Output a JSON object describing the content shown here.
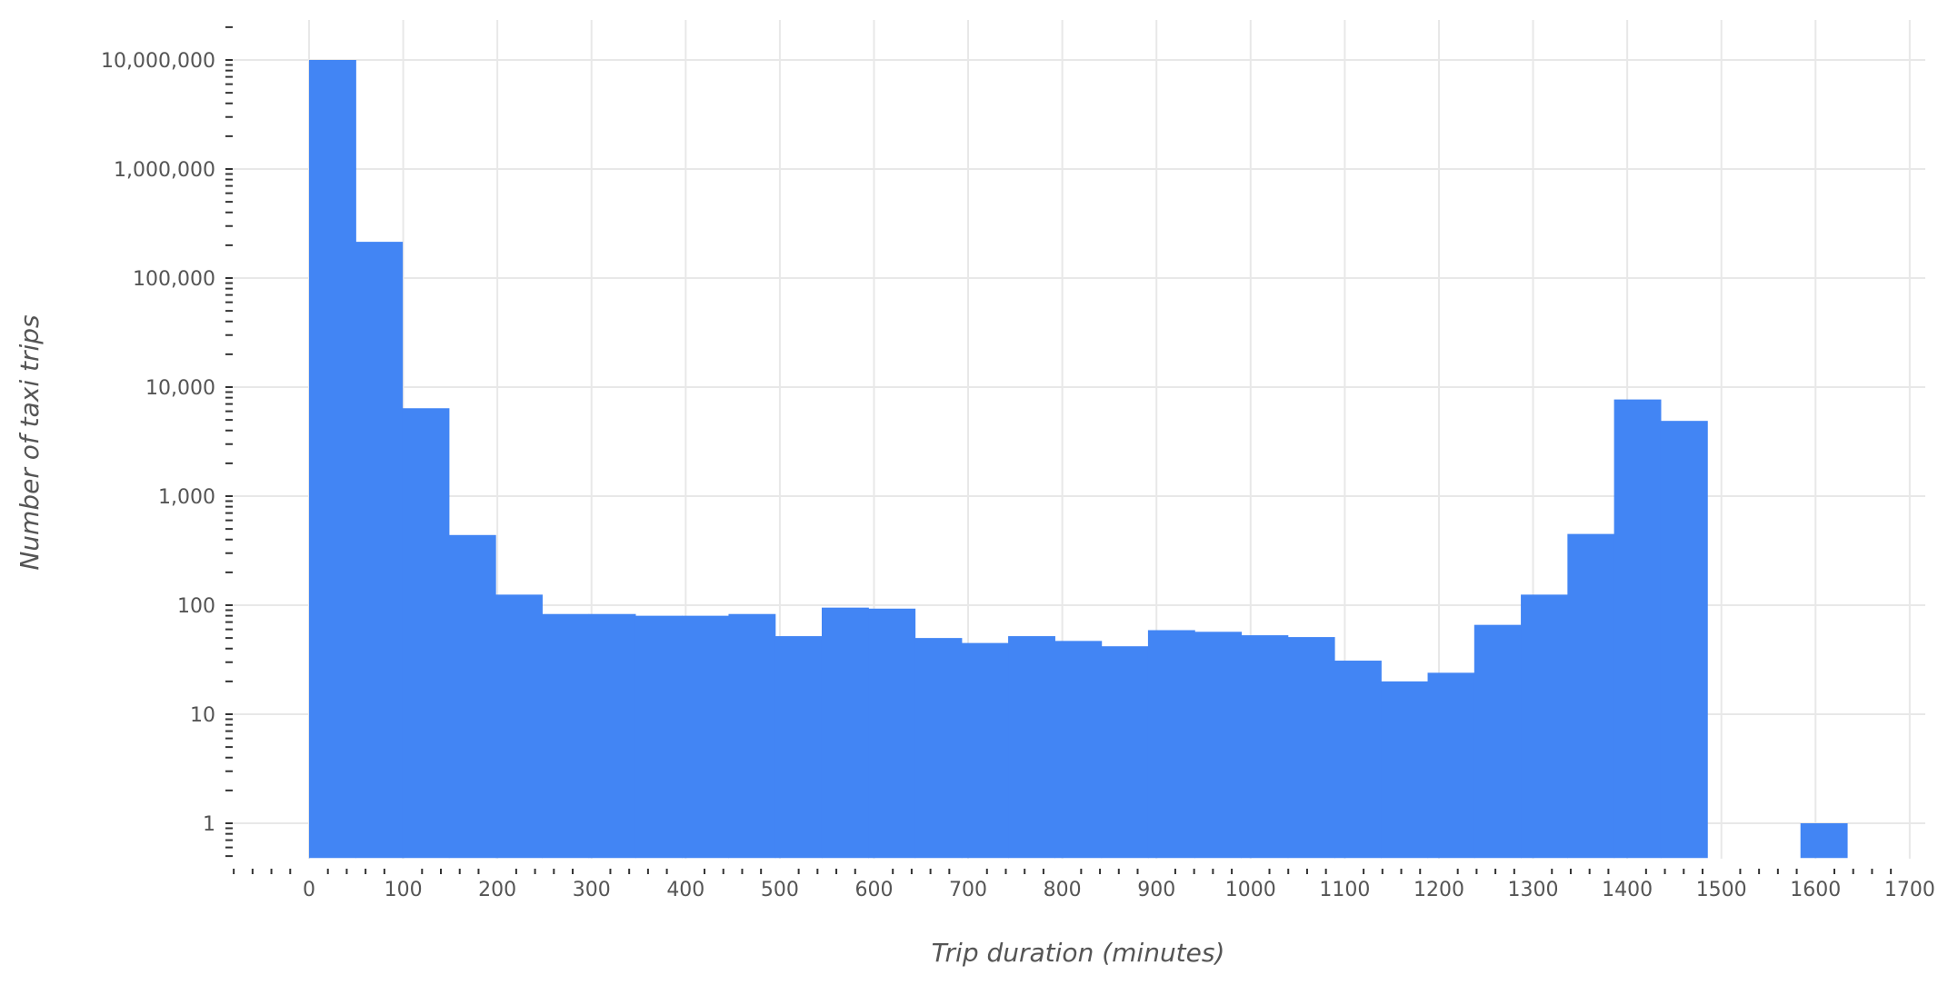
{
  "chart_data": {
    "type": "bar",
    "subtype": "histogram",
    "title": "",
    "xlabel": "Trip duration (minutes)",
    "ylabel": "Number of taxi trips",
    "x_scale": "linear",
    "y_scale": "log",
    "xlim": [
      -85,
      1715
    ],
    "ylim": [
      0.48,
      22000000
    ],
    "x_ticks": [
      0,
      100,
      200,
      300,
      400,
      500,
      600,
      700,
      800,
      900,
      1000,
      1100,
      1200,
      1300,
      1400,
      1500,
      1600,
      1700
    ],
    "x_tick_labels": [
      "0",
      "100",
      "200",
      "300",
      "400",
      "500",
      "600",
      "700",
      "800",
      "900",
      "1000",
      "1100",
      "1200",
      "1300",
      "1400",
      "1500",
      "1600",
      "1700"
    ],
    "y_ticks": [
      1,
      10,
      100,
      1000,
      10000,
      100000,
      1000000,
      10000000
    ],
    "y_tick_labels": [
      "1",
      "10",
      "100",
      "1,000",
      "10,000",
      "100,000",
      "1,000,000",
      "10,000,000"
    ],
    "grid": true,
    "bar_color": "#4285f4",
    "bin_width": 49.5,
    "bins": [
      {
        "start": 0,
        "value": 10000000
      },
      {
        "start": 49.5,
        "value": 215000
      },
      {
        "start": 99,
        "value": 6400
      },
      {
        "start": 148.5,
        "value": 440
      },
      {
        "start": 198,
        "value": 125
      },
      {
        "start": 247.5,
        "value": 83
      },
      {
        "start": 297,
        "value": 83
      },
      {
        "start": 346.5,
        "value": 80
      },
      {
        "start": 396,
        "value": 80
      },
      {
        "start": 445.5,
        "value": 83
      },
      {
        "start": 495,
        "value": 52
      },
      {
        "start": 544.5,
        "value": 95
      },
      {
        "start": 594,
        "value": 93
      },
      {
        "start": 643.5,
        "value": 50
      },
      {
        "start": 693,
        "value": 45
      },
      {
        "start": 742.5,
        "value": 52
      },
      {
        "start": 792,
        "value": 47
      },
      {
        "start": 841.5,
        "value": 42
      },
      {
        "start": 891,
        "value": 59
      },
      {
        "start": 940.5,
        "value": 57
      },
      {
        "start": 990,
        "value": 53
      },
      {
        "start": 1039.5,
        "value": 51
      },
      {
        "start": 1089,
        "value": 31
      },
      {
        "start": 1138.5,
        "value": 20
      },
      {
        "start": 1188,
        "value": 24
      },
      {
        "start": 1237.5,
        "value": 66
      },
      {
        "start": 1287,
        "value": 125
      },
      {
        "start": 1336.5,
        "value": 450
      },
      {
        "start": 1386,
        "value": 7700
      },
      {
        "start": 1435.5,
        "value": 4900
      },
      {
        "start": 1584,
        "value": 1
      }
    ]
  }
}
